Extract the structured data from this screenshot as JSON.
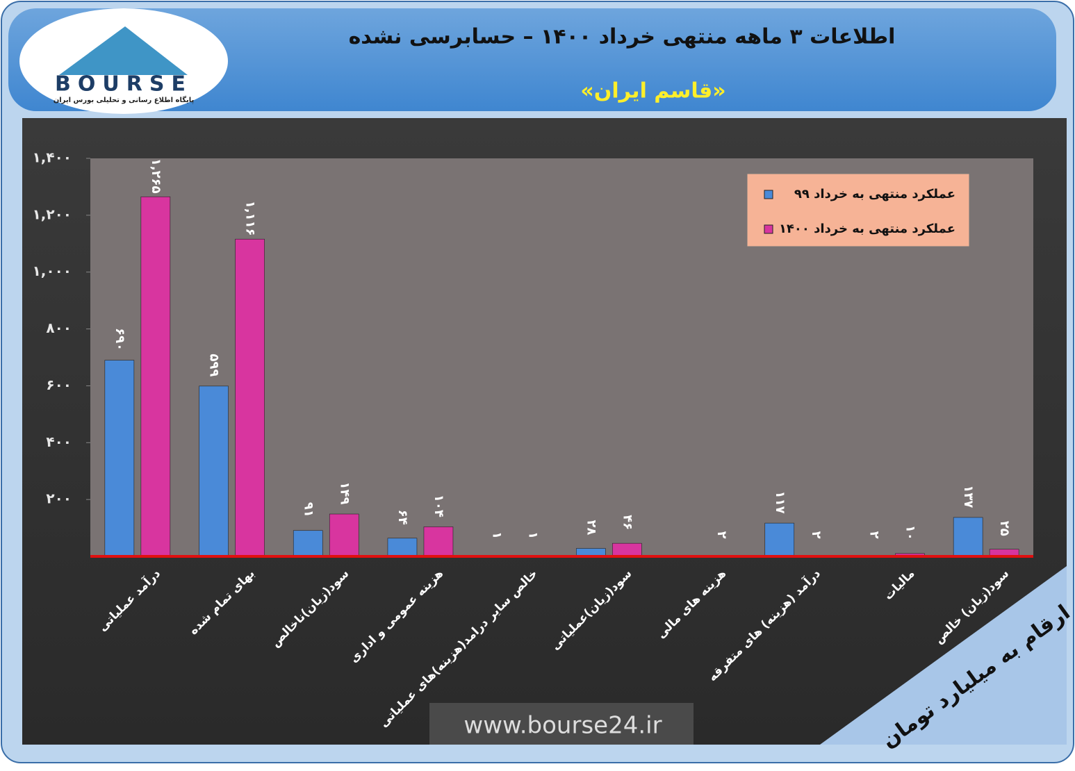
{
  "logo": {
    "brand": "BOURSE",
    "caption": "پایگاه اطلاع رسانی و تحلیلی بورس ایران"
  },
  "chart_data": {
    "type": "bar",
    "title": "اطلاعات ۳ ماهه منتهی خرداد ۱۴۰۰ – حسابرسی نشده",
    "subtitle": "«قاسم ایران»",
    "unit_note": "ارقام به میلیارد تومان",
    "watermark": "www.bourse24.ir",
    "categories": [
      "درآمد عملیاتی",
      "بهای تمام شده",
      "سود(زیان)ناخالص",
      "هزینه عمومی و اداری",
      "خالص سایر درامد(هزینه)های عملیاتی",
      "سود(زیان)عملیاتی",
      "هزینه های مالی",
      "درآمد (هزینه) های متفرقه",
      "مالیات",
      "سود(زیان) خالص"
    ],
    "series": [
      {
        "name": "عملکرد منتهی به خرداد ۹۹",
        "color": "#4a8ad8",
        "values": [
          690,
          599,
          91,
          64,
          1,
          28,
          null,
          117,
          2,
          137
        ],
        "value_labels": [
          "۶۹۰",
          "۵۹۹",
          "۹۱",
          "۶۴",
          "۱",
          "۲۸",
          null,
          "۱۱۷",
          "۲",
          "۱۳۷"
        ]
      },
      {
        "name": "عملکرد منتهی به خرداد ۱۴۰۰",
        "color": "#d8359f",
        "values": [
          1265,
          1116,
          149,
          104,
          1,
          46,
          2,
          2,
          10,
          25
        ],
        "value_labels": [
          "۱,۲۶۵",
          "۱,۱۱۶",
          "۱۴۹",
          "۱۰۴",
          "۱",
          "۴۶",
          "۲",
          "۲",
          "۱۰",
          "۲۵"
        ]
      }
    ],
    "ylim": [
      0,
      1400
    ],
    "yticks": [
      {
        "value": 200,
        "label": "۲۰۰"
      },
      {
        "value": 400,
        "label": "۴۰۰"
      },
      {
        "value": 600,
        "label": "۶۰۰"
      },
      {
        "value": 800,
        "label": "۸۰۰"
      },
      {
        "value": 1000,
        "label": "۱,۰۰۰"
      },
      {
        "value": 1200,
        "label": "۱,۲۰۰"
      },
      {
        "value": 1400,
        "label": "۱,۴۰۰"
      }
    ],
    "legend": "top-right",
    "grid": false
  }
}
